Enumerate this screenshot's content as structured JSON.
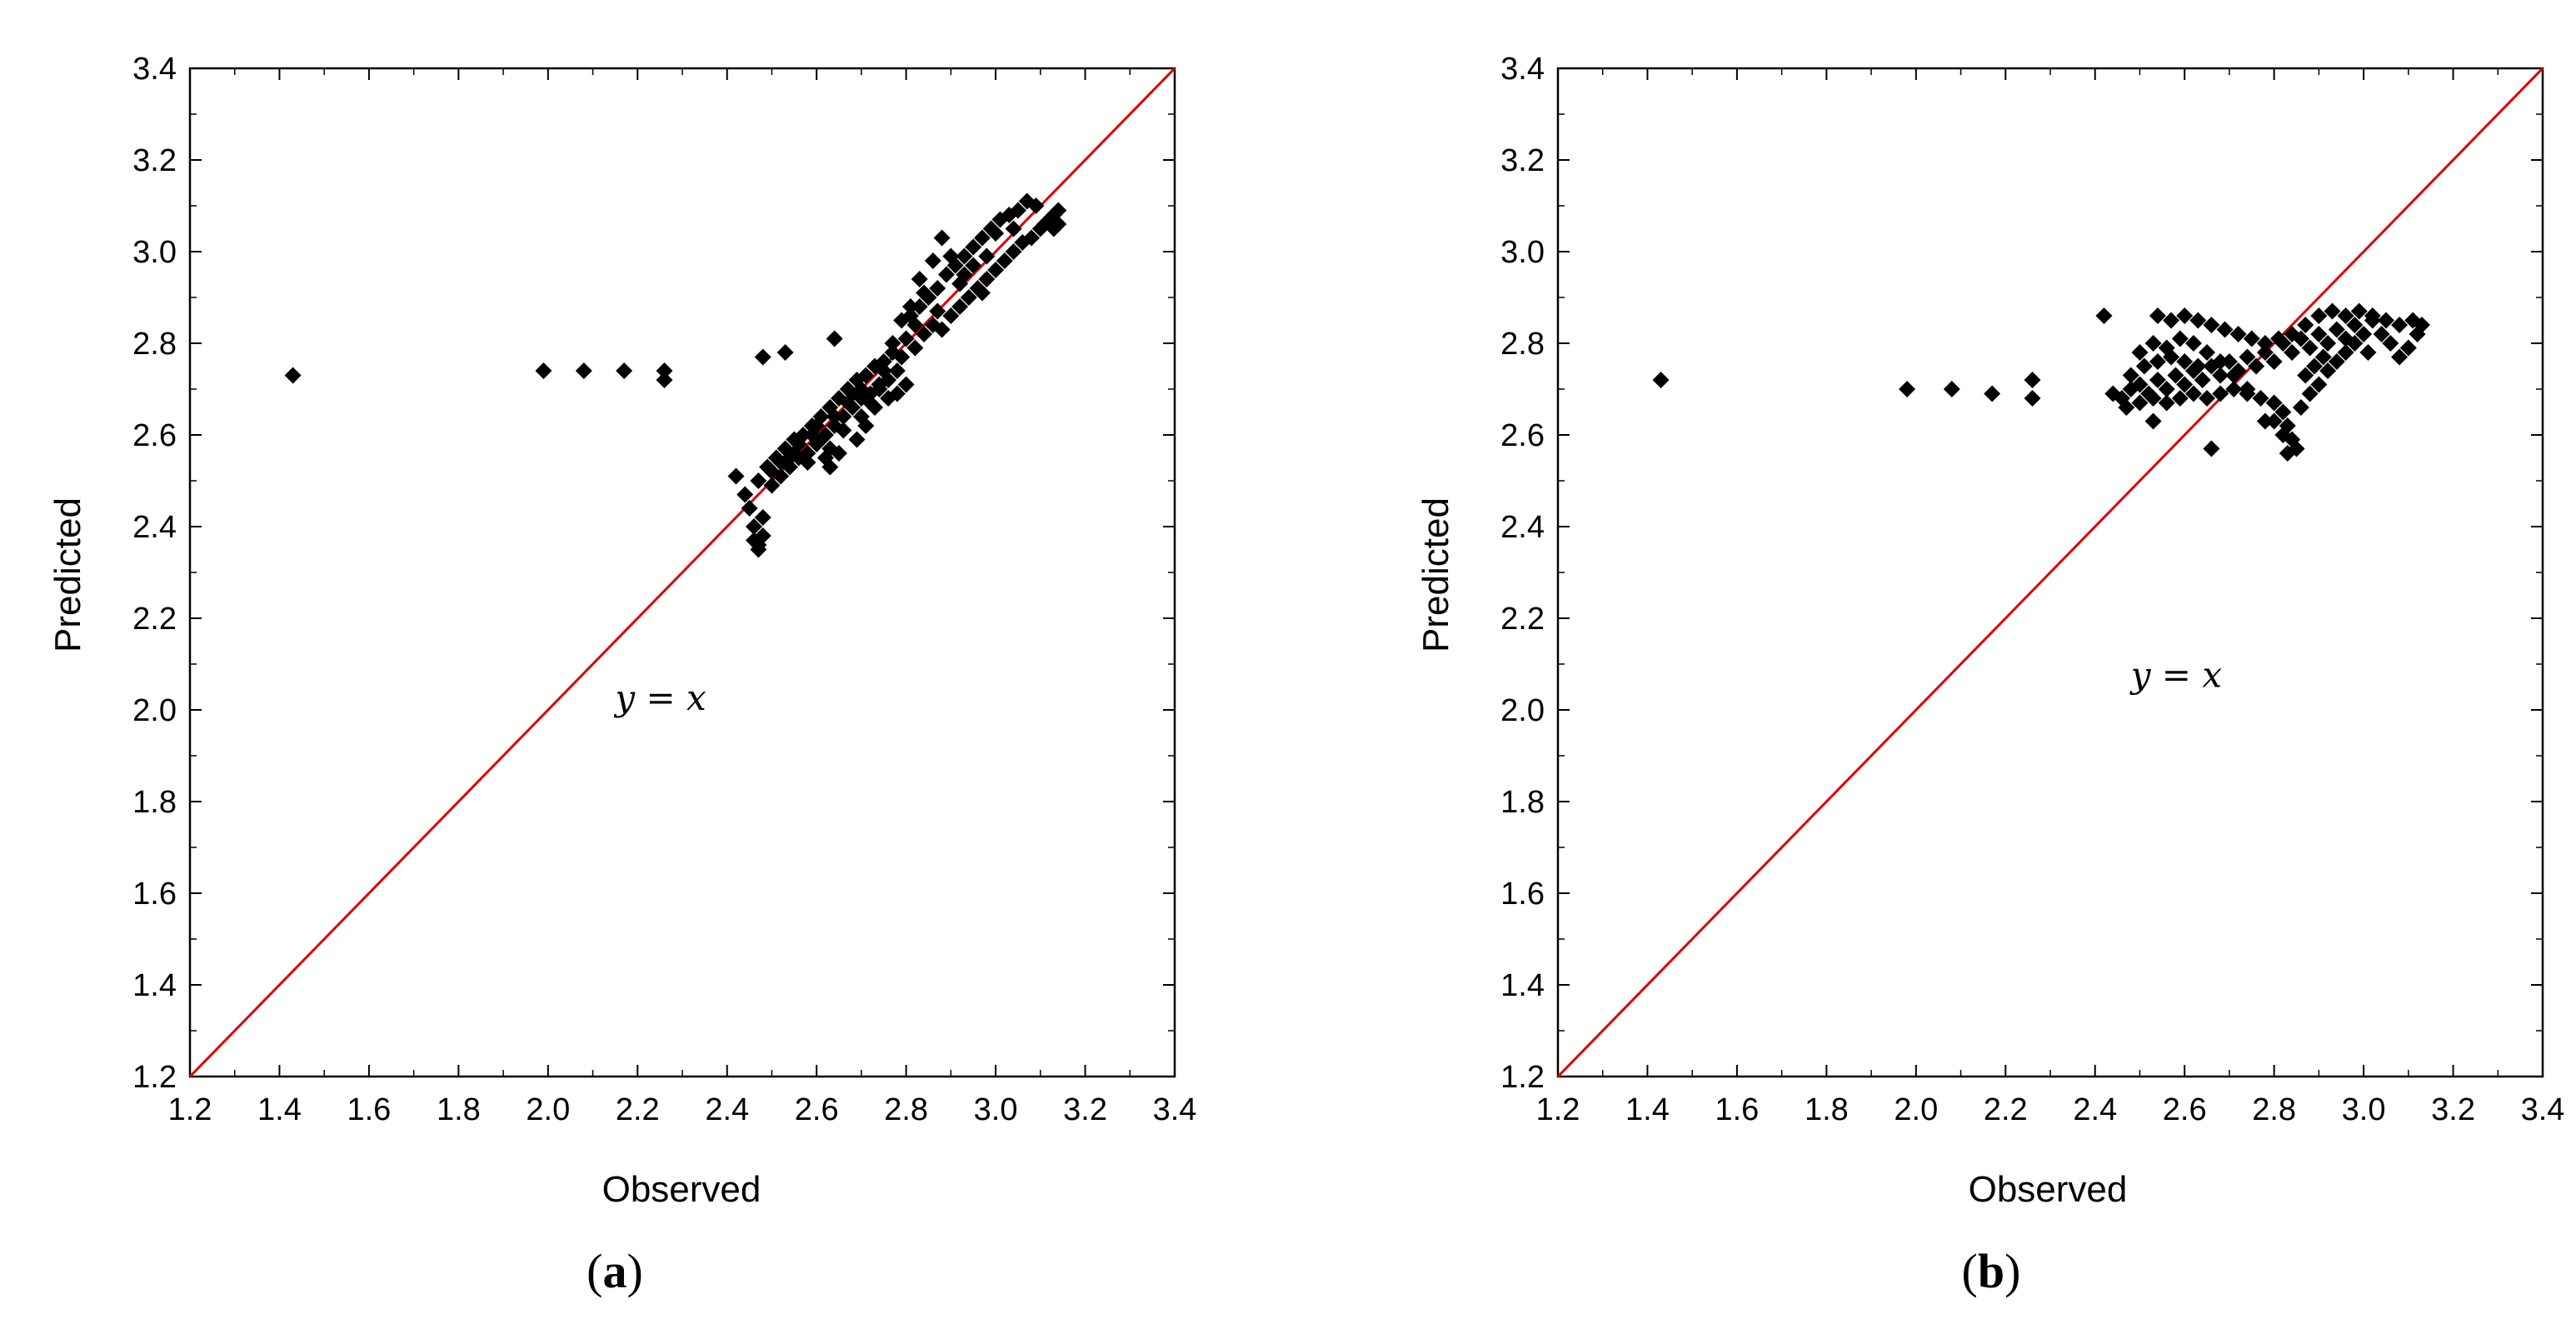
{
  "chart_data": [
    {
      "type": "scatter",
      "panel_label": "(a)",
      "panel_letter": "a",
      "xlabel": "Observed",
      "ylabel": "Predicted",
      "xlim": [
        1.2,
        3.4
      ],
      "ylim": [
        1.2,
        3.4
      ],
      "x_ticks": [
        "1.2",
        "1.4",
        "1.6",
        "1.8",
        "2.0",
        "2.2",
        "2.4",
        "2.6",
        "2.8",
        "3.0",
        "3.2",
        "3.4"
      ],
      "y_ticks": [
        "1.2",
        "1.4",
        "1.6",
        "1.8",
        "2.0",
        "2.2",
        "2.4",
        "2.6",
        "2.8",
        "3.0",
        "3.2",
        "3.4"
      ],
      "reference_line": {
        "label": "y = x",
        "label_x": 2.15,
        "label_y": 2.0,
        "color": "#e00000"
      },
      "marker": "diamond",
      "marker_color": "#000000",
      "grid": false,
      "points": [
        [
          1.43,
          2.73
        ],
        [
          1.99,
          2.74
        ],
        [
          2.08,
          2.74
        ],
        [
          2.17,
          2.74
        ],
        [
          2.26,
          2.74
        ],
        [
          2.26,
          2.72
        ],
        [
          2.48,
          2.77
        ],
        [
          2.53,
          2.78
        ],
        [
          2.64,
          2.81
        ],
        [
          2.42,
          2.51
        ],
        [
          2.44,
          2.47
        ],
        [
          2.45,
          2.44
        ],
        [
          2.46,
          2.4
        ],
        [
          2.46,
          2.37
        ],
        [
          2.47,
          2.35
        ],
        [
          2.47,
          2.36
        ],
        [
          2.48,
          2.38
        ],
        [
          2.48,
          2.42
        ],
        [
          2.47,
          2.5
        ],
        [
          2.49,
          2.53
        ],
        [
          2.5,
          2.49
        ],
        [
          2.51,
          2.55
        ],
        [
          2.52,
          2.51
        ],
        [
          2.53,
          2.57
        ],
        [
          2.54,
          2.53
        ],
        [
          2.55,
          2.59
        ],
        [
          2.56,
          2.55
        ],
        [
          2.57,
          2.6
        ],
        [
          2.58,
          2.56
        ],
        [
          2.59,
          2.62
        ],
        [
          2.6,
          2.58
        ],
        [
          2.61,
          2.64
        ],
        [
          2.62,
          2.6
        ],
        [
          2.63,
          2.66
        ],
        [
          2.64,
          2.62
        ],
        [
          2.65,
          2.68
        ],
        [
          2.66,
          2.64
        ],
        [
          2.67,
          2.7
        ],
        [
          2.68,
          2.66
        ],
        [
          2.69,
          2.72
        ],
        [
          2.7,
          2.68
        ],
        [
          2.71,
          2.73
        ],
        [
          2.72,
          2.69
        ],
        [
          2.73,
          2.75
        ],
        [
          2.74,
          2.7
        ],
        [
          2.75,
          2.76
        ],
        [
          2.76,
          2.72
        ],
        [
          2.77,
          2.78
        ],
        [
          2.78,
          2.74
        ],
        [
          2.79,
          2.85
        ],
        [
          2.8,
          2.81
        ],
        [
          2.81,
          2.86
        ],
        [
          2.82,
          2.79
        ],
        [
          2.83,
          2.88
        ],
        [
          2.84,
          2.82
        ],
        [
          2.85,
          2.9
        ],
        [
          2.86,
          2.84
        ],
        [
          2.87,
          2.92
        ],
        [
          2.88,
          2.83
        ],
        [
          2.89,
          2.95
        ],
        [
          2.9,
          2.86
        ],
        [
          2.91,
          2.97
        ],
        [
          2.92,
          2.88
        ],
        [
          2.93,
          2.99
        ],
        [
          2.94,
          2.9
        ],
        [
          2.95,
          3.01
        ],
        [
          2.96,
          2.92
        ],
        [
          2.97,
          3.03
        ],
        [
          2.98,
          2.94
        ],
        [
          2.99,
          3.05
        ],
        [
          3.0,
          2.96
        ],
        [
          3.01,
          3.07
        ],
        [
          3.02,
          2.98
        ],
        [
          3.03,
          3.08
        ],
        [
          3.04,
          3.0
        ],
        [
          3.05,
          3.09
        ],
        [
          3.06,
          3.02
        ],
        [
          3.07,
          3.11
        ],
        [
          3.08,
          3.03
        ],
        [
          3.09,
          3.1
        ],
        [
          3.1,
          3.05
        ],
        [
          3.11,
          3.06
        ],
        [
          3.12,
          3.07
        ],
        [
          3.13,
          3.08
        ],
        [
          3.14,
          3.06
        ],
        [
          3.14,
          3.09
        ],
        [
          3.13,
          3.05
        ],
        [
          2.55,
          2.56
        ],
        [
          2.58,
          2.54
        ],
        [
          2.6,
          2.62
        ],
        [
          2.63,
          2.57
        ],
        [
          2.66,
          2.61
        ],
        [
          2.68,
          2.69
        ],
        [
          2.7,
          2.64
        ],
        [
          2.72,
          2.67
        ],
        [
          2.74,
          2.71
        ],
        [
          2.78,
          2.69
        ],
        [
          2.8,
          2.71
        ],
        [
          2.76,
          2.68
        ],
        [
          2.73,
          2.66
        ],
        [
          2.65,
          2.56
        ],
        [
          2.62,
          2.55
        ],
        [
          2.63,
          2.53
        ],
        [
          2.69,
          2.59
        ],
        [
          2.71,
          2.62
        ],
        [
          2.84,
          2.91
        ],
        [
          2.86,
          2.98
        ],
        [
          2.88,
          3.03
        ],
        [
          2.9,
          2.99
        ],
        [
          2.83,
          2.94
        ],
        [
          2.81,
          2.88
        ],
        [
          2.93,
          2.95
        ],
        [
          2.97,
          2.91
        ],
        [
          3.0,
          3.04
        ],
        [
          2.95,
          2.97
        ],
        [
          2.87,
          2.87
        ],
        [
          2.92,
          2.93
        ],
        [
          2.98,
          2.99
        ],
        [
          3.04,
          3.05
        ],
        [
          2.82,
          2.84
        ],
        [
          2.77,
          2.8
        ],
        [
          2.75,
          2.74
        ],
        [
          2.79,
          2.77
        ],
        [
          2.56,
          2.58
        ],
        [
          2.59,
          2.6
        ],
        [
          2.61,
          2.59
        ],
        [
          2.64,
          2.64
        ],
        [
          2.67,
          2.67
        ],
        [
          2.7,
          2.7
        ],
        [
          2.52,
          2.54
        ],
        [
          2.5,
          2.52
        ],
        [
          2.54,
          2.55
        ]
      ]
    },
    {
      "type": "scatter",
      "panel_label": "(b)",
      "panel_letter": "b",
      "xlabel": "Observed",
      "ylabel": "Predicted",
      "xlim": [
        1.2,
        3.4
      ],
      "ylim": [
        1.2,
        3.4
      ],
      "x_ticks": [
        "1.2",
        "1.4",
        "1.6",
        "1.8",
        "2.0",
        "2.2",
        "2.4",
        "2.6",
        "2.8",
        "3.0",
        "3.2",
        "3.4"
      ],
      "y_ticks": [
        "1.2",
        "1.4",
        "1.6",
        "1.8",
        "2.0",
        "2.2",
        "2.4",
        "2.6",
        "2.8",
        "3.0",
        "3.2",
        "3.4"
      ],
      "reference_line": {
        "label": "y = x",
        "label_x": 2.48,
        "label_y": 2.05,
        "color": "#e00000"
      },
      "marker": "diamond",
      "marker_color": "#000000",
      "grid": false,
      "points": [
        [
          1.43,
          2.72
        ],
        [
          1.98,
          2.7
        ],
        [
          2.08,
          2.7
        ],
        [
          2.17,
          2.69
        ],
        [
          2.26,
          2.72
        ],
        [
          2.26,
          2.68
        ],
        [
          2.42,
          2.86
        ],
        [
          2.53,
          2.63
        ],
        [
          2.66,
          2.57
        ],
        [
          2.44,
          2.69
        ],
        [
          2.46,
          2.68
        ],
        [
          2.48,
          2.7
        ],
        [
          2.5,
          2.71
        ],
        [
          2.52,
          2.69
        ],
        [
          2.54,
          2.72
        ],
        [
          2.56,
          2.7
        ],
        [
          2.58,
          2.73
        ],
        [
          2.6,
          2.71
        ],
        [
          2.62,
          2.74
        ],
        [
          2.64,
          2.72
        ],
        [
          2.66,
          2.75
        ],
        [
          2.68,
          2.73
        ],
        [
          2.7,
          2.76
        ],
        [
          2.72,
          2.74
        ],
        [
          2.74,
          2.77
        ],
        [
          2.76,
          2.75
        ],
        [
          2.78,
          2.78
        ],
        [
          2.8,
          2.76
        ],
        [
          2.82,
          2.8
        ],
        [
          2.84,
          2.78
        ],
        [
          2.86,
          2.81
        ],
        [
          2.88,
          2.79
        ],
        [
          2.9,
          2.82
        ],
        [
          2.92,
          2.8
        ],
        [
          2.94,
          2.83
        ],
        [
          2.96,
          2.81
        ],
        [
          2.98,
          2.84
        ],
        [
          3.0,
          2.82
        ],
        [
          3.02,
          2.85
        ],
        [
          2.54,
          2.86
        ],
        [
          2.57,
          2.85
        ],
        [
          2.6,
          2.86
        ],
        [
          2.63,
          2.85
        ],
        [
          2.66,
          2.84
        ],
        [
          2.69,
          2.83
        ],
        [
          2.72,
          2.82
        ],
        [
          2.75,
          2.81
        ],
        [
          2.78,
          2.8
        ],
        [
          2.81,
          2.81
        ],
        [
          2.84,
          2.82
        ],
        [
          2.87,
          2.84
        ],
        [
          2.9,
          2.86
        ],
        [
          2.93,
          2.87
        ],
        [
          2.96,
          2.86
        ],
        [
          2.99,
          2.87
        ],
        [
          3.02,
          2.86
        ],
        [
          3.05,
          2.85
        ],
        [
          3.08,
          2.84
        ],
        [
          3.11,
          2.85
        ],
        [
          3.13,
          2.84
        ],
        [
          3.12,
          2.82
        ],
        [
          3.1,
          2.79
        ],
        [
          3.08,
          2.77
        ],
        [
          3.06,
          2.8
        ],
        [
          3.04,
          2.82
        ],
        [
          3.01,
          2.78
        ],
        [
          2.5,
          2.78
        ],
        [
          2.53,
          2.8
        ],
        [
          2.56,
          2.79
        ],
        [
          2.59,
          2.81
        ],
        [
          2.62,
          2.8
        ],
        [
          2.65,
          2.78
        ],
        [
          2.68,
          2.76
        ],
        [
          2.71,
          2.73
        ],
        [
          2.74,
          2.7
        ],
        [
          2.48,
          2.73
        ],
        [
          2.51,
          2.75
        ],
        [
          2.54,
          2.76
        ],
        [
          2.57,
          2.77
        ],
        [
          2.6,
          2.76
        ],
        [
          2.63,
          2.75
        ],
        [
          2.47,
          2.66
        ],
        [
          2.5,
          2.67
        ],
        [
          2.53,
          2.68
        ],
        [
          2.56,
          2.67
        ],
        [
          2.59,
          2.68
        ],
        [
          2.62,
          2.69
        ],
        [
          2.65,
          2.68
        ],
        [
          2.68,
          2.69
        ],
        [
          2.71,
          2.7
        ],
        [
          2.74,
          2.69
        ],
        [
          2.77,
          2.68
        ],
        [
          2.8,
          2.67
        ],
        [
          2.82,
          2.65
        ],
        [
          2.83,
          2.62
        ],
        [
          2.84,
          2.59
        ],
        [
          2.85,
          2.57
        ],
        [
          2.83,
          2.56
        ],
        [
          2.82,
          2.6
        ],
        [
          2.8,
          2.63
        ],
        [
          2.78,
          2.63
        ],
        [
          2.86,
          2.66
        ],
        [
          2.88,
          2.69
        ],
        [
          2.9,
          2.71
        ],
        [
          2.92,
          2.74
        ],
        [
          2.94,
          2.76
        ],
        [
          2.96,
          2.78
        ],
        [
          2.98,
          2.8
        ],
        [
          2.87,
          2.73
        ],
        [
          2.89,
          2.75
        ],
        [
          2.91,
          2.77
        ]
      ]
    }
  ]
}
